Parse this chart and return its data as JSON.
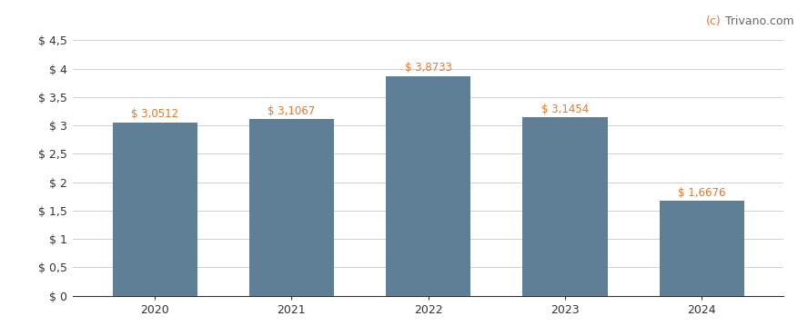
{
  "categories": [
    "2020",
    "2021",
    "2022",
    "2023",
    "2024"
  ],
  "values": [
    3.0512,
    3.1067,
    3.8733,
    3.1454,
    1.6676
  ],
  "labels": [
    "$ 3,0512",
    "$ 3,1067",
    "$ 3,8733",
    "$ 3,1454",
    "$ 1,6676"
  ],
  "bar_color": "#5f7f96",
  "ylim": [
    0,
    4.5
  ],
  "yticks": [
    0,
    0.5,
    1.0,
    1.5,
    2.0,
    2.5,
    3.0,
    3.5,
    4.0,
    4.5
  ],
  "ytick_labels": [
    "$ 0",
    "$ 0,5",
    "$ 1",
    "$ 1,5",
    "$ 2",
    "$ 2,5",
    "$ 3",
    "$ 3,5",
    "$ 4",
    "$ 4,5"
  ],
  "background_color": "#ffffff",
  "grid_color": "#d0d0d0",
  "watermark_color_c": "#e87722",
  "watermark_color_rest": "#666666",
  "label_color": "#e87722",
  "axis_color": "#333333",
  "tick_color": "#333333",
  "bar_label_fontsize": 8.5,
  "tick_fontsize": 9,
  "xtick_fontsize": 9
}
